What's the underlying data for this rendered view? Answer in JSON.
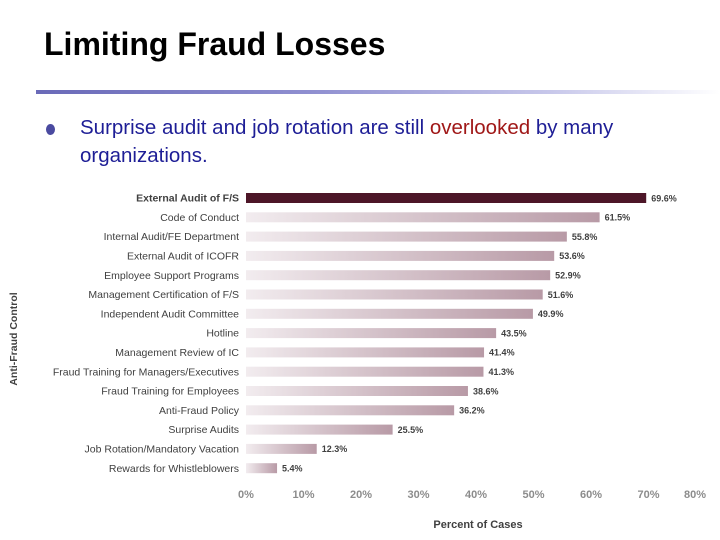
{
  "slide": {
    "title": "Limiting Fraud Losses",
    "bullet": {
      "before": "Surprise audit and job rotation are still ",
      "highlight": "overlooked",
      "after": " by many organizations."
    },
    "colors": {
      "title": "#000000",
      "text": "#1e1e96",
      "highlight": "#a01818",
      "rule": "#6a6ab8"
    }
  },
  "chart_data": {
    "type": "bar",
    "orientation": "horizontal",
    "categories": [
      "External Audit of F/S",
      "Code of Conduct",
      "Internal Audit/FE Department",
      "External Audit of ICOFR",
      "Employee Support Programs",
      "Management Certification of F/S",
      "Independent Audit Committee",
      "Hotline",
      "Management Review of IC",
      "Fraud Training for Managers/Executives",
      "Fraud Training for Employees",
      "Anti-Fraud Policy",
      "Surprise Audits",
      "Job Rotation/Mandatory Vacation",
      "Rewards for Whistleblowers"
    ],
    "values": [
      69.6,
      61.5,
      55.8,
      53.6,
      52.9,
      51.6,
      49.9,
      43.5,
      41.4,
      41.3,
      38.6,
      36.2,
      25.5,
      12.3,
      5.4
    ],
    "value_labels": [
      "69.6%",
      "61.5%",
      "55.8%",
      "53.6%",
      "52.9%",
      "51.6%",
      "49.9%",
      "43.5%",
      "41.4%",
      "41.3%",
      "38.6%",
      "36.2%",
      "25.5%",
      "12.3%",
      "5.4%"
    ],
    "xticks": [
      "0%",
      "10%",
      "20%",
      "30%",
      "40%",
      "50%",
      "60%",
      "70%",
      "80%"
    ],
    "xlim": [
      0,
      80
    ],
    "xlabel": "Percent of Cases",
    "ylabel": "Anti-Fraud Control",
    "highlight_index": 0,
    "colors": {
      "highlight": "#4d1628",
      "bar_dark": "#b89aa6",
      "bar_light": "#f2ecef",
      "tick": "#8c8c8c",
      "label": "#404040"
    },
    "grid": false
  }
}
